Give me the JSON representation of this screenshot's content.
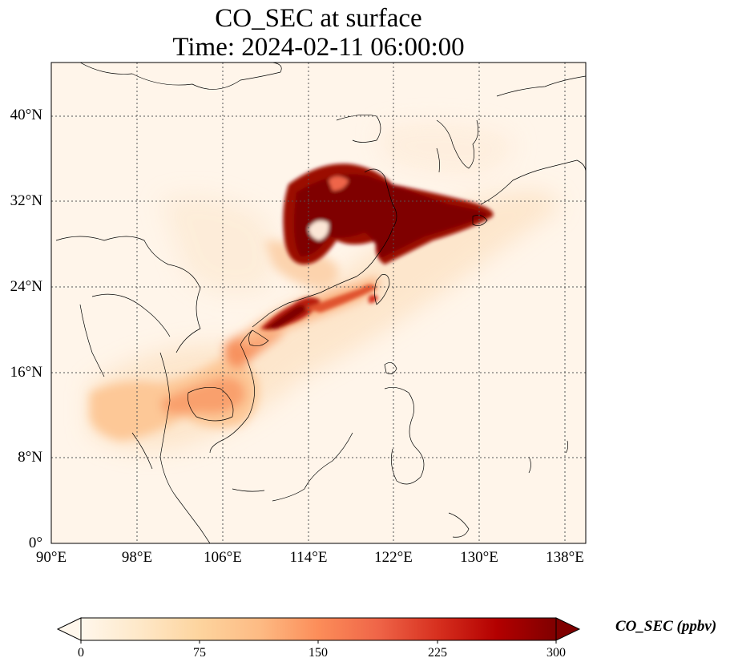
{
  "title": {
    "line1": "CO_SEC at surface",
    "line2": "Time: 2024-02-11 06:00:00"
  },
  "axes": {
    "lon_labels": [
      "90°E",
      "98°E",
      "106°E",
      "114°E",
      "122°E",
      "130°E",
      "138°E"
    ],
    "lat_labels": [
      "0°",
      "8°N",
      "16°N",
      "24°N",
      "32°N",
      "40°N"
    ],
    "lon_range": [
      90,
      140
    ],
    "lat_range": [
      0,
      45
    ],
    "gridlines": "dotted"
  },
  "colorbar": {
    "title": "CO_SEC (ppbv)",
    "ticks": [
      "0",
      "75",
      "150",
      "225",
      "300"
    ],
    "range": [
      0,
      300
    ],
    "extend": "both",
    "colormap": "OrRd",
    "colors": [
      "#fff7ec",
      "#fee8c8",
      "#fdd49e",
      "#fdbb84",
      "#fc8d59",
      "#ef6548",
      "#d7301f",
      "#b30000",
      "#7f0000"
    ]
  }
}
